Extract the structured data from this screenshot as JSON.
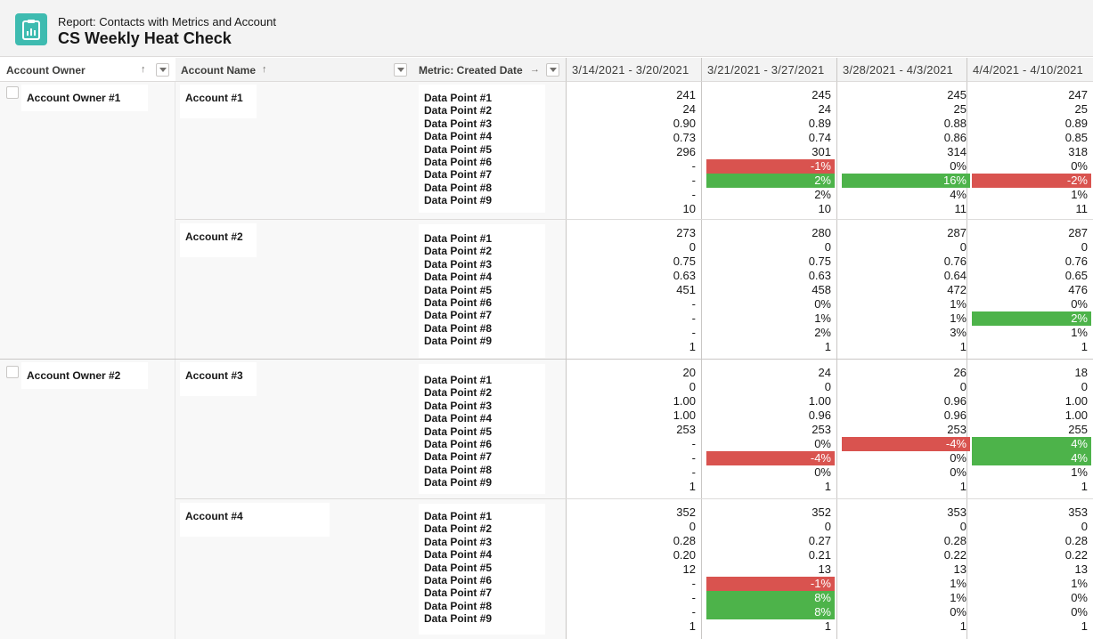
{
  "header": {
    "subtitle": "Report: Contacts with Metrics and Account",
    "title": "CS Weekly Heat Check",
    "icon": "report-clipboard-icon",
    "icon_color": "#3ebbb0"
  },
  "columns": {
    "owner": "Account Owner",
    "account": "Account Name",
    "metric": "Metric: Created Date",
    "dates": [
      "3/14/2021 - 3/20/2021",
      "3/21/2021 - 3/27/2021",
      "3/28/2021 - 4/3/2021",
      "4/4/2021 - 4/10/2021"
    ]
  },
  "colors": {
    "red": "#d9534f",
    "green": "#4db34a"
  },
  "metrics": [
    "Data Point #1",
    "Data Point #2",
    "Data Point #3",
    "Data Point #4",
    "Data Point #5",
    "Data Point #6",
    "Data Point #7",
    "Data Point #8",
    "Data Point #9"
  ],
  "groups": [
    {
      "owner": "Account Owner #1",
      "accounts": [
        {
          "name": "Account #1",
          "values": [
            [
              "241",
              "24",
              "0.90",
              "0.73",
              "296",
              "-",
              "-",
              "-",
              "10"
            ],
            [
              "245",
              "24",
              "0.89",
              "0.74",
              "301",
              "-1%",
              "2%",
              "2%",
              "10"
            ],
            [
              "245",
              "25",
              "0.88",
              "0.86",
              "314",
              "0%",
              "16%",
              "4%",
              "11"
            ],
            [
              "247",
              "25",
              "0.89",
              "0.85",
              "318",
              "0%",
              "-2%",
              "1%",
              "11"
            ]
          ],
          "highlights": [
            [
              null,
              null,
              null,
              null,
              null,
              null,
              null,
              null,
              null
            ],
            [
              null,
              null,
              null,
              null,
              null,
              "red",
              "green",
              null,
              null
            ],
            [
              null,
              null,
              null,
              null,
              null,
              null,
              "green",
              null,
              null
            ],
            [
              null,
              null,
              null,
              null,
              null,
              null,
              "red",
              null,
              null
            ]
          ]
        },
        {
          "name": "Account #2",
          "values": [
            [
              "273",
              "0",
              "0.75",
              "0.63",
              "451",
              "-",
              "-",
              "-",
              "1"
            ],
            [
              "280",
              "0",
              "0.75",
              "0.63",
              "458",
              "0%",
              "1%",
              "2%",
              "1"
            ],
            [
              "287",
              "0",
              "0.76",
              "0.64",
              "472",
              "1%",
              "1%",
              "3%",
              "1"
            ],
            [
              "287",
              "0",
              "0.76",
              "0.65",
              "476",
              "0%",
              "2%",
              "1%",
              "1"
            ]
          ],
          "highlights": [
            [
              null,
              null,
              null,
              null,
              null,
              null,
              null,
              null,
              null
            ],
            [
              null,
              null,
              null,
              null,
              null,
              null,
              null,
              null,
              null
            ],
            [
              null,
              null,
              null,
              null,
              null,
              null,
              null,
              null,
              null
            ],
            [
              null,
              null,
              null,
              null,
              null,
              null,
              "green",
              null,
              null
            ]
          ]
        }
      ]
    },
    {
      "owner": "Account Owner #2",
      "accounts": [
        {
          "name": "Account #3",
          "values": [
            [
              "20",
              "0",
              "1.00",
              "1.00",
              "253",
              "-",
              "-",
              "-",
              "1"
            ],
            [
              "24",
              "0",
              "1.00",
              "0.96",
              "253",
              "0%",
              "-4%",
              "0%",
              "1"
            ],
            [
              "26",
              "0",
              "0.96",
              "0.96",
              "253",
              "-4%",
              "0%",
              "0%",
              "1"
            ],
            [
              "18",
              "0",
              "1.00",
              "1.00",
              "255",
              "4%",
              "4%",
              "1%",
              "1"
            ]
          ],
          "highlights": [
            [
              null,
              null,
              null,
              null,
              null,
              null,
              null,
              null,
              null
            ],
            [
              null,
              null,
              null,
              null,
              null,
              null,
              "red",
              null,
              null
            ],
            [
              null,
              null,
              null,
              null,
              null,
              "red",
              null,
              null,
              null
            ],
            [
              null,
              null,
              null,
              null,
              null,
              "green",
              "green",
              null,
              null
            ]
          ]
        },
        {
          "name": "Account #4",
          "values": [
            [
              "352",
              "0",
              "0.28",
              "0.20",
              "12",
              "-",
              "-",
              "-",
              "1"
            ],
            [
              "352",
              "0",
              "0.27",
              "0.21",
              "13",
              "-1%",
              "8%",
              "8%",
              "1"
            ],
            [
              "353",
              "0",
              "0.28",
              "0.22",
              "13",
              "1%",
              "1%",
              "0%",
              "1"
            ],
            [
              "353",
              "0",
              "0.28",
              "0.22",
              "13",
              "1%",
              "0%",
              "0%",
              "1"
            ]
          ],
          "highlights": [
            [
              null,
              null,
              null,
              null,
              null,
              null,
              null,
              null,
              null
            ],
            [
              null,
              null,
              null,
              null,
              null,
              "red",
              "green",
              "green",
              null
            ],
            [
              null,
              null,
              null,
              null,
              null,
              null,
              null,
              null,
              null
            ],
            [
              null,
              null,
              null,
              null,
              null,
              null,
              null,
              null,
              null
            ]
          ]
        }
      ]
    }
  ]
}
